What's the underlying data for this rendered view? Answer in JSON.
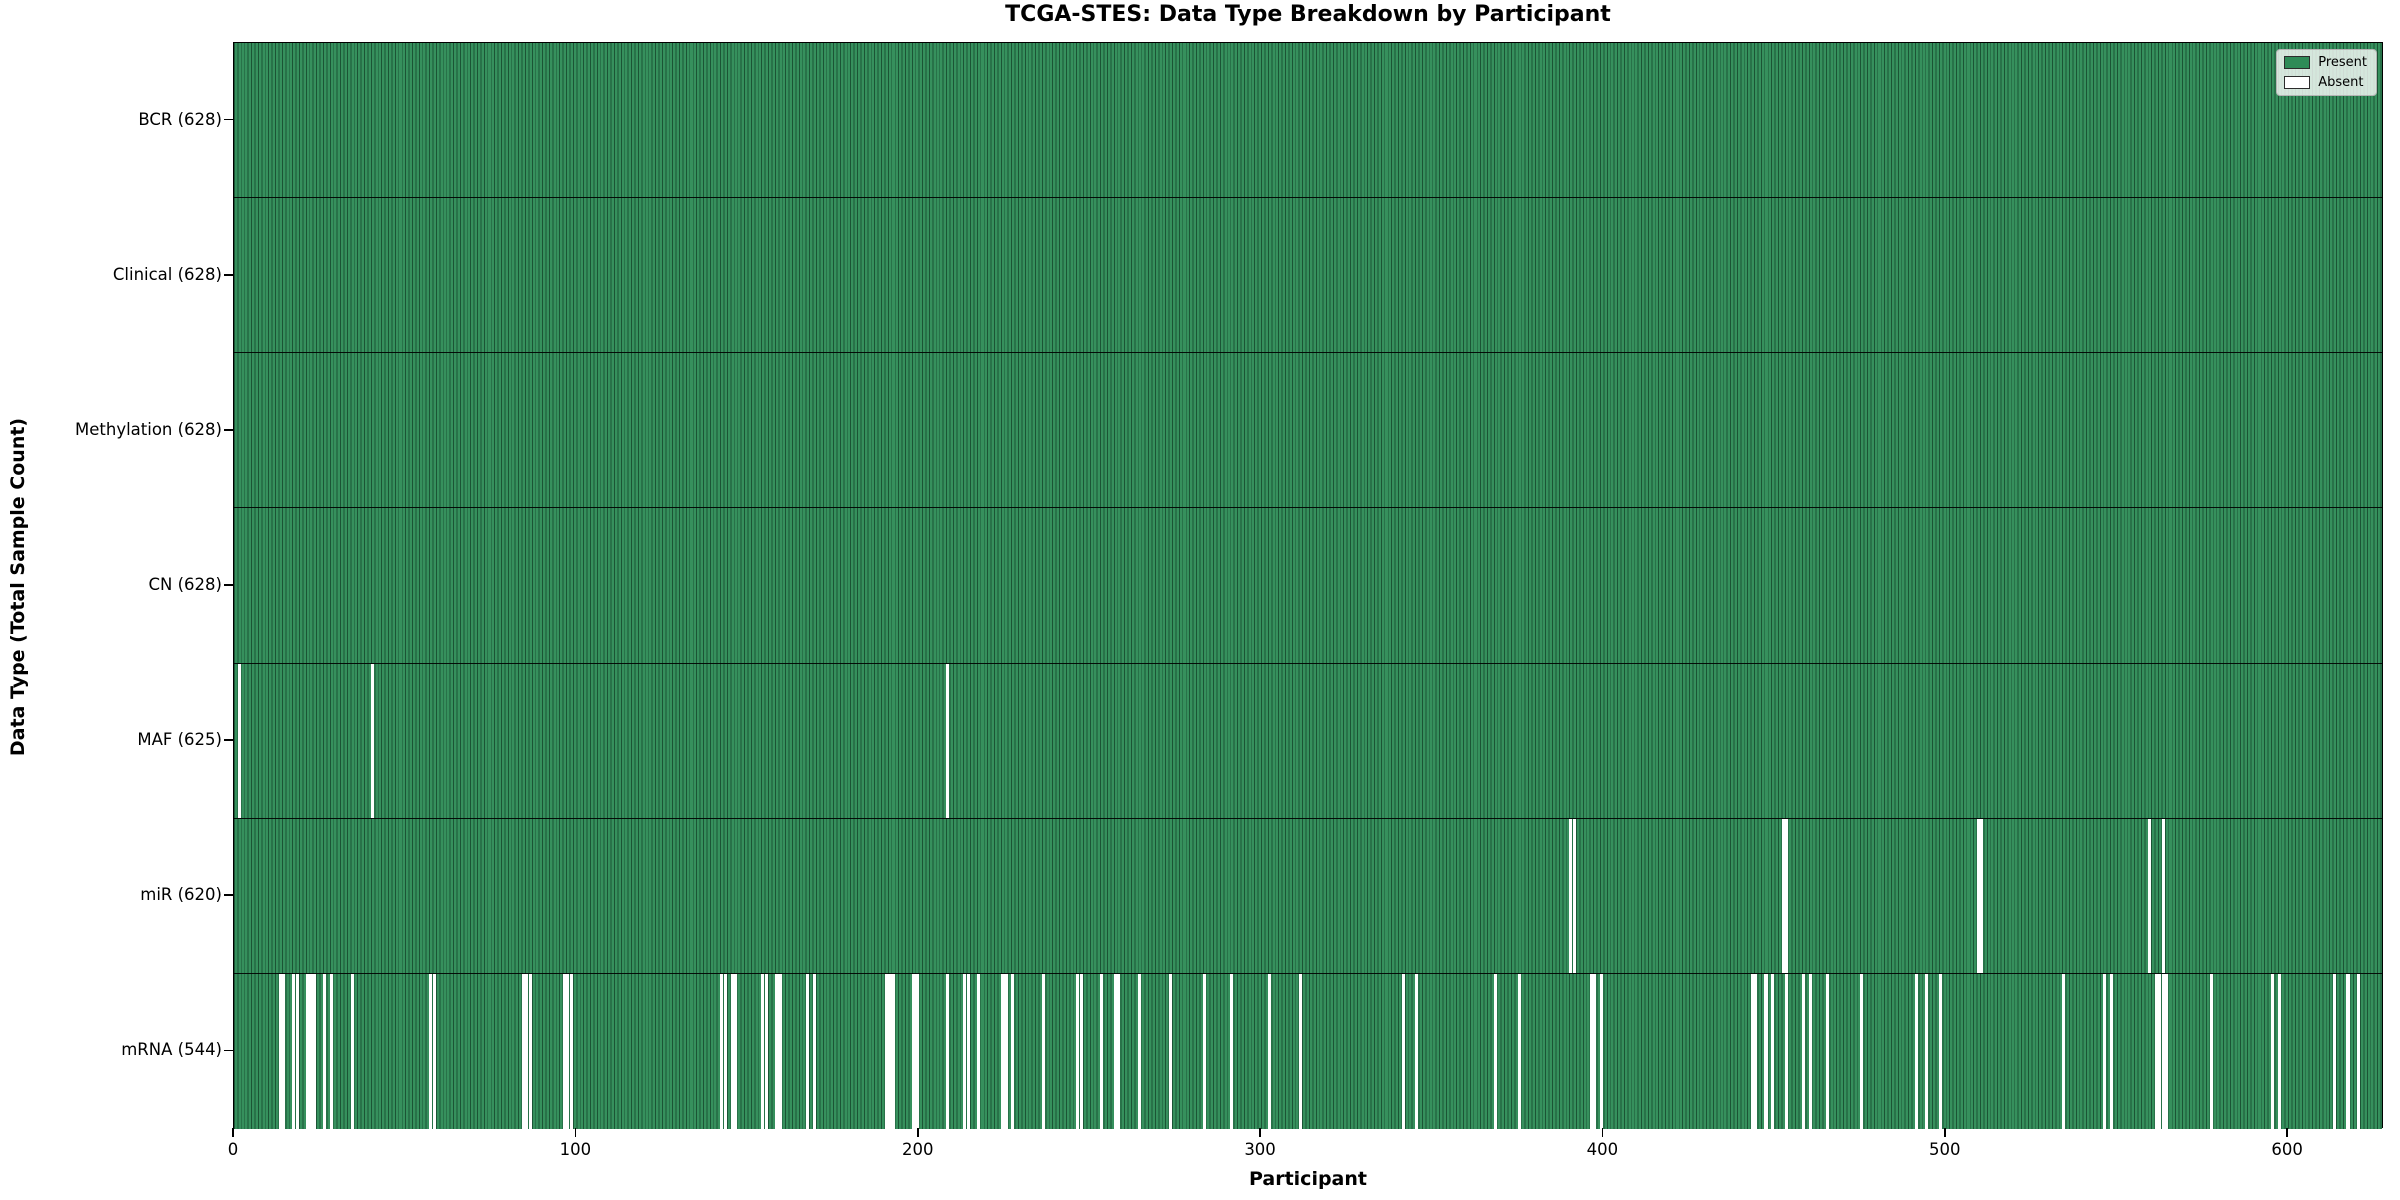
{
  "title": "TCGA-STES: Data Type Breakdown by Participant",
  "axes": {
    "xlabel": "Participant",
    "ylabel": "Data Type (Total Sample Count)"
  },
  "legend": {
    "present_label": "Present",
    "absent_label": "Absent"
  },
  "colors": {
    "present_fill": "#36905d",
    "present_swatch": "#2E8B57",
    "absent_fill": "#ffffff",
    "bar_edge": "#16402a",
    "row_separator": "#000000"
  },
  "chart_data": {
    "type": "heatmap",
    "title": "TCGA-STES: Data Type Breakdown by Participant",
    "xlabel": "Participant",
    "ylabel": "Data Type (Total Sample Count)",
    "x_range": [
      0,
      628
    ],
    "x_ticks": [
      0,
      100,
      200,
      300,
      400,
      500,
      600
    ],
    "n_participants": 628,
    "legend_entries": [
      "Present",
      "Absent"
    ],
    "legend_position": "upper right",
    "grid": false,
    "rows": [
      {
        "name": "BCR",
        "total": 628,
        "label": "BCR (628)",
        "absent_count": 0,
        "absent_participants": []
      },
      {
        "name": "Clinical",
        "total": 628,
        "label": "Clinical (628)",
        "absent_count": 0,
        "absent_participants": []
      },
      {
        "name": "Methylation",
        "total": 628,
        "label": "Methylation (628)",
        "absent_count": 0,
        "absent_participants": []
      },
      {
        "name": "CN",
        "total": 628,
        "label": "CN (628)",
        "absent_count": 0,
        "absent_participants": []
      },
      {
        "name": "MAF",
        "total": 625,
        "label": "MAF (625)",
        "absent_count": 3,
        "absent_participants": [
          1,
          40,
          208
        ]
      },
      {
        "name": "miR",
        "total": 620,
        "label": "miR (620)",
        "absent_count": 8,
        "absent_participants": [
          390,
          391,
          452,
          453,
          509,
          510,
          559,
          563
        ]
      },
      {
        "name": "mRNA",
        "total": 544,
        "label": "mRNA (544)",
        "absent_count": 84,
        "absent_participants": [
          13,
          14,
          17,
          18,
          21,
          22,
          23,
          26,
          28,
          34,
          57,
          58,
          84,
          85,
          86,
          96,
          97,
          98,
          142,
          143,
          145,
          146,
          154,
          155,
          158,
          159,
          167,
          169,
          190,
          191,
          192,
          198,
          199,
          208,
          213,
          214,
          217,
          224,
          225,
          227,
          236,
          246,
          247,
          253,
          257,
          258,
          264,
          273,
          283,
          291,
          302,
          311,
          341,
          345,
          368,
          375,
          396,
          397,
          399,
          443,
          444,
          447,
          449,
          453,
          458,
          460,
          465,
          475,
          491,
          494,
          498,
          534,
          546,
          548,
          561,
          562,
          563,
          564,
          577,
          595,
          597,
          613,
          617,
          620
        ]
      }
    ]
  }
}
